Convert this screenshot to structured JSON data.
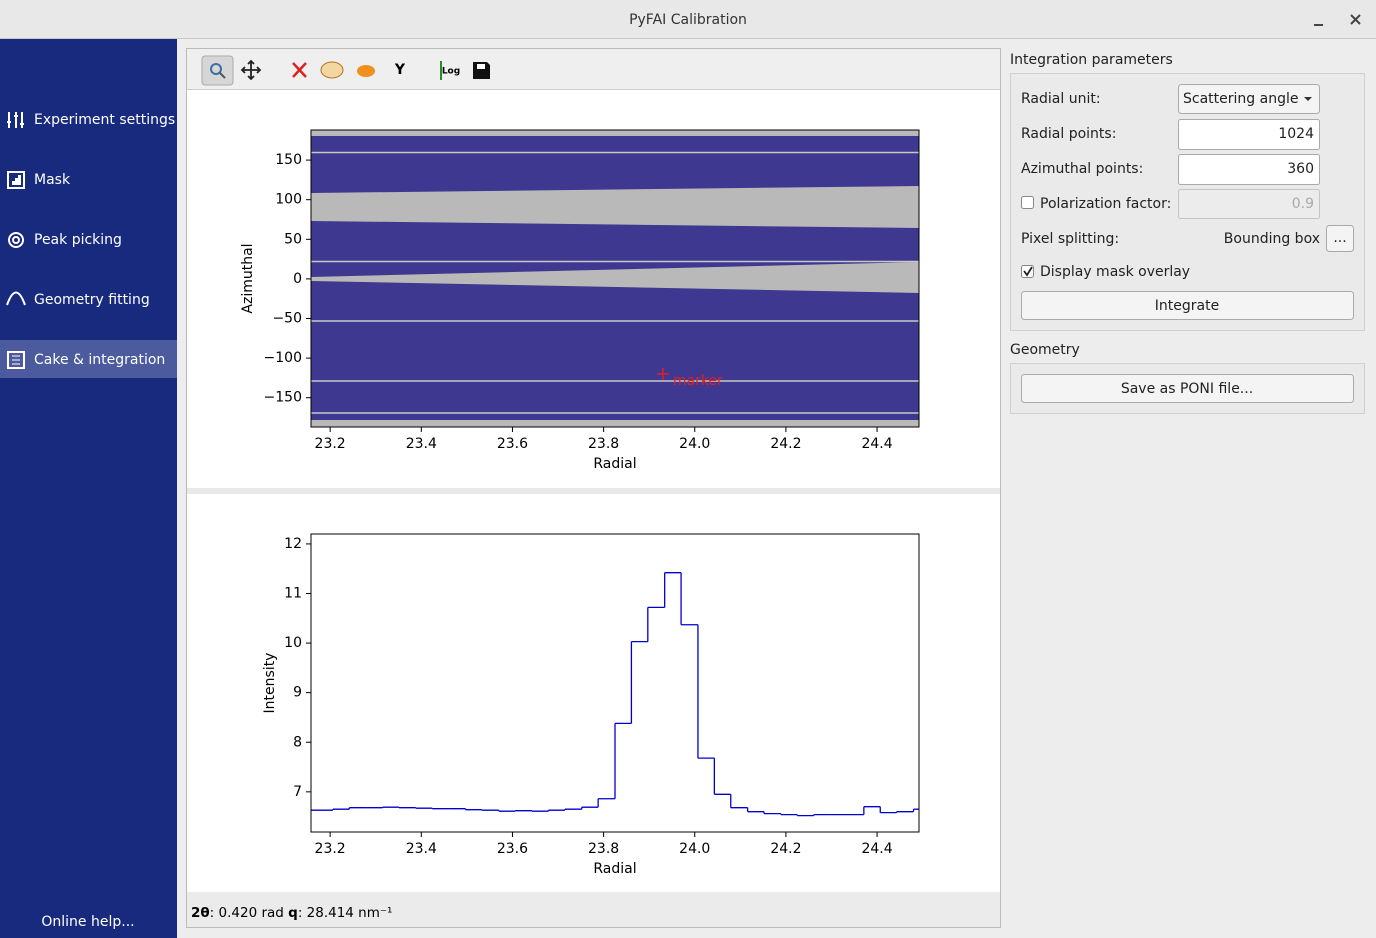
{
  "window": {
    "title": "PyFAI Calibration"
  },
  "sidebar": {
    "items": [
      "Experiment settings",
      "Mask",
      "Peak picking",
      "Geometry fitting",
      "Cake & integration"
    ],
    "help": "Online help..."
  },
  "toolbar": {
    "y_axis": "Y",
    "log": "Log"
  },
  "chart_data": [
    {
      "type": "image",
      "xlabel": "Radial",
      "ylabel": "Azimuthal",
      "xlim": [
        23.158,
        24.492
      ],
      "ylim": [
        -187,
        188
      ],
      "xticks": [
        23.2,
        23.4,
        23.6,
        23.8,
        {
          "value": 24,
          "label": "24.0"
        },
        24.2,
        24.4
      ],
      "yticks": [
        {
          "value": -150,
          "label": "−150"
        },
        {
          "value": -100,
          "label": "−100"
        },
        {
          "value": -50,
          "label": "−50"
        },
        0,
        50,
        100,
        150
      ],
      "annotations": [
        {
          "text": "marker",
          "x": 23.93,
          "y": -120,
          "color": "#e02020"
        }
      ]
    },
    {
      "type": "step",
      "xlabel": "Radial",
      "ylabel": "Intensity",
      "color": "#0000cc",
      "xlim": [
        23.158,
        24.492
      ],
      "ylim": [
        6.19,
        12.2
      ],
      "xticks": [
        23.2,
        23.4,
        23.6,
        23.8,
        {
          "value": 24,
          "label": "24.0"
        },
        24.2,
        24.4
      ],
      "yticks": [
        7,
        8,
        9,
        10,
        11,
        12
      ],
      "x": [
        23.133,
        23.169,
        23.206,
        23.242,
        23.279,
        23.315,
        23.351,
        23.388,
        23.424,
        23.461,
        23.497,
        23.533,
        23.57,
        23.606,
        23.643,
        23.679,
        23.715,
        23.752,
        23.788,
        23.825,
        23.861,
        23.897,
        23.934,
        23.97,
        24.007,
        24.043,
        24.079,
        24.116,
        24.152,
        24.189,
        24.225,
        24.261,
        24.298,
        24.334,
        24.371,
        24.407,
        24.443,
        24.48
      ],
      "values": [
        6.63,
        6.63,
        6.65,
        6.68,
        6.68,
        6.69,
        6.68,
        6.67,
        6.66,
        6.66,
        6.64,
        6.63,
        6.61,
        6.62,
        6.61,
        6.63,
        6.65,
        6.69,
        6.86,
        8.38,
        10.03,
        10.72,
        11.42,
        10.37,
        7.68,
        6.95,
        6.68,
        6.6,
        6.56,
        6.54,
        6.52,
        6.54,
        6.54,
        6.54,
        6.7,
        6.58,
        6.6,
        6.65
      ]
    }
  ],
  "status": {
    "tth_label": "2θ",
    "tth_value": ": 0.420 rad ",
    "q_label": "q",
    "q_value": ": 28.414 nm⁻¹"
  },
  "integration": {
    "title": "Integration parameters",
    "radial_unit_label": "Radial unit:",
    "radial_unit": "Scattering angle",
    "radial_points_label": "Radial points:",
    "radial_points": 1024,
    "azimuthal_points_label": "Azimuthal points:",
    "azimuthal_points": 360,
    "polarization_label": "Polarization factor:",
    "polarization": 0.9,
    "pixel_splitting_label": "Pixel splitting:",
    "pixel_splitting": "Bounding box",
    "more_button": "...",
    "mask_overlay_label": "Display mask overlay",
    "integrate_button": "Integrate"
  },
  "geometry": {
    "title": "Geometry",
    "save_button": "Save as PONI file..."
  }
}
